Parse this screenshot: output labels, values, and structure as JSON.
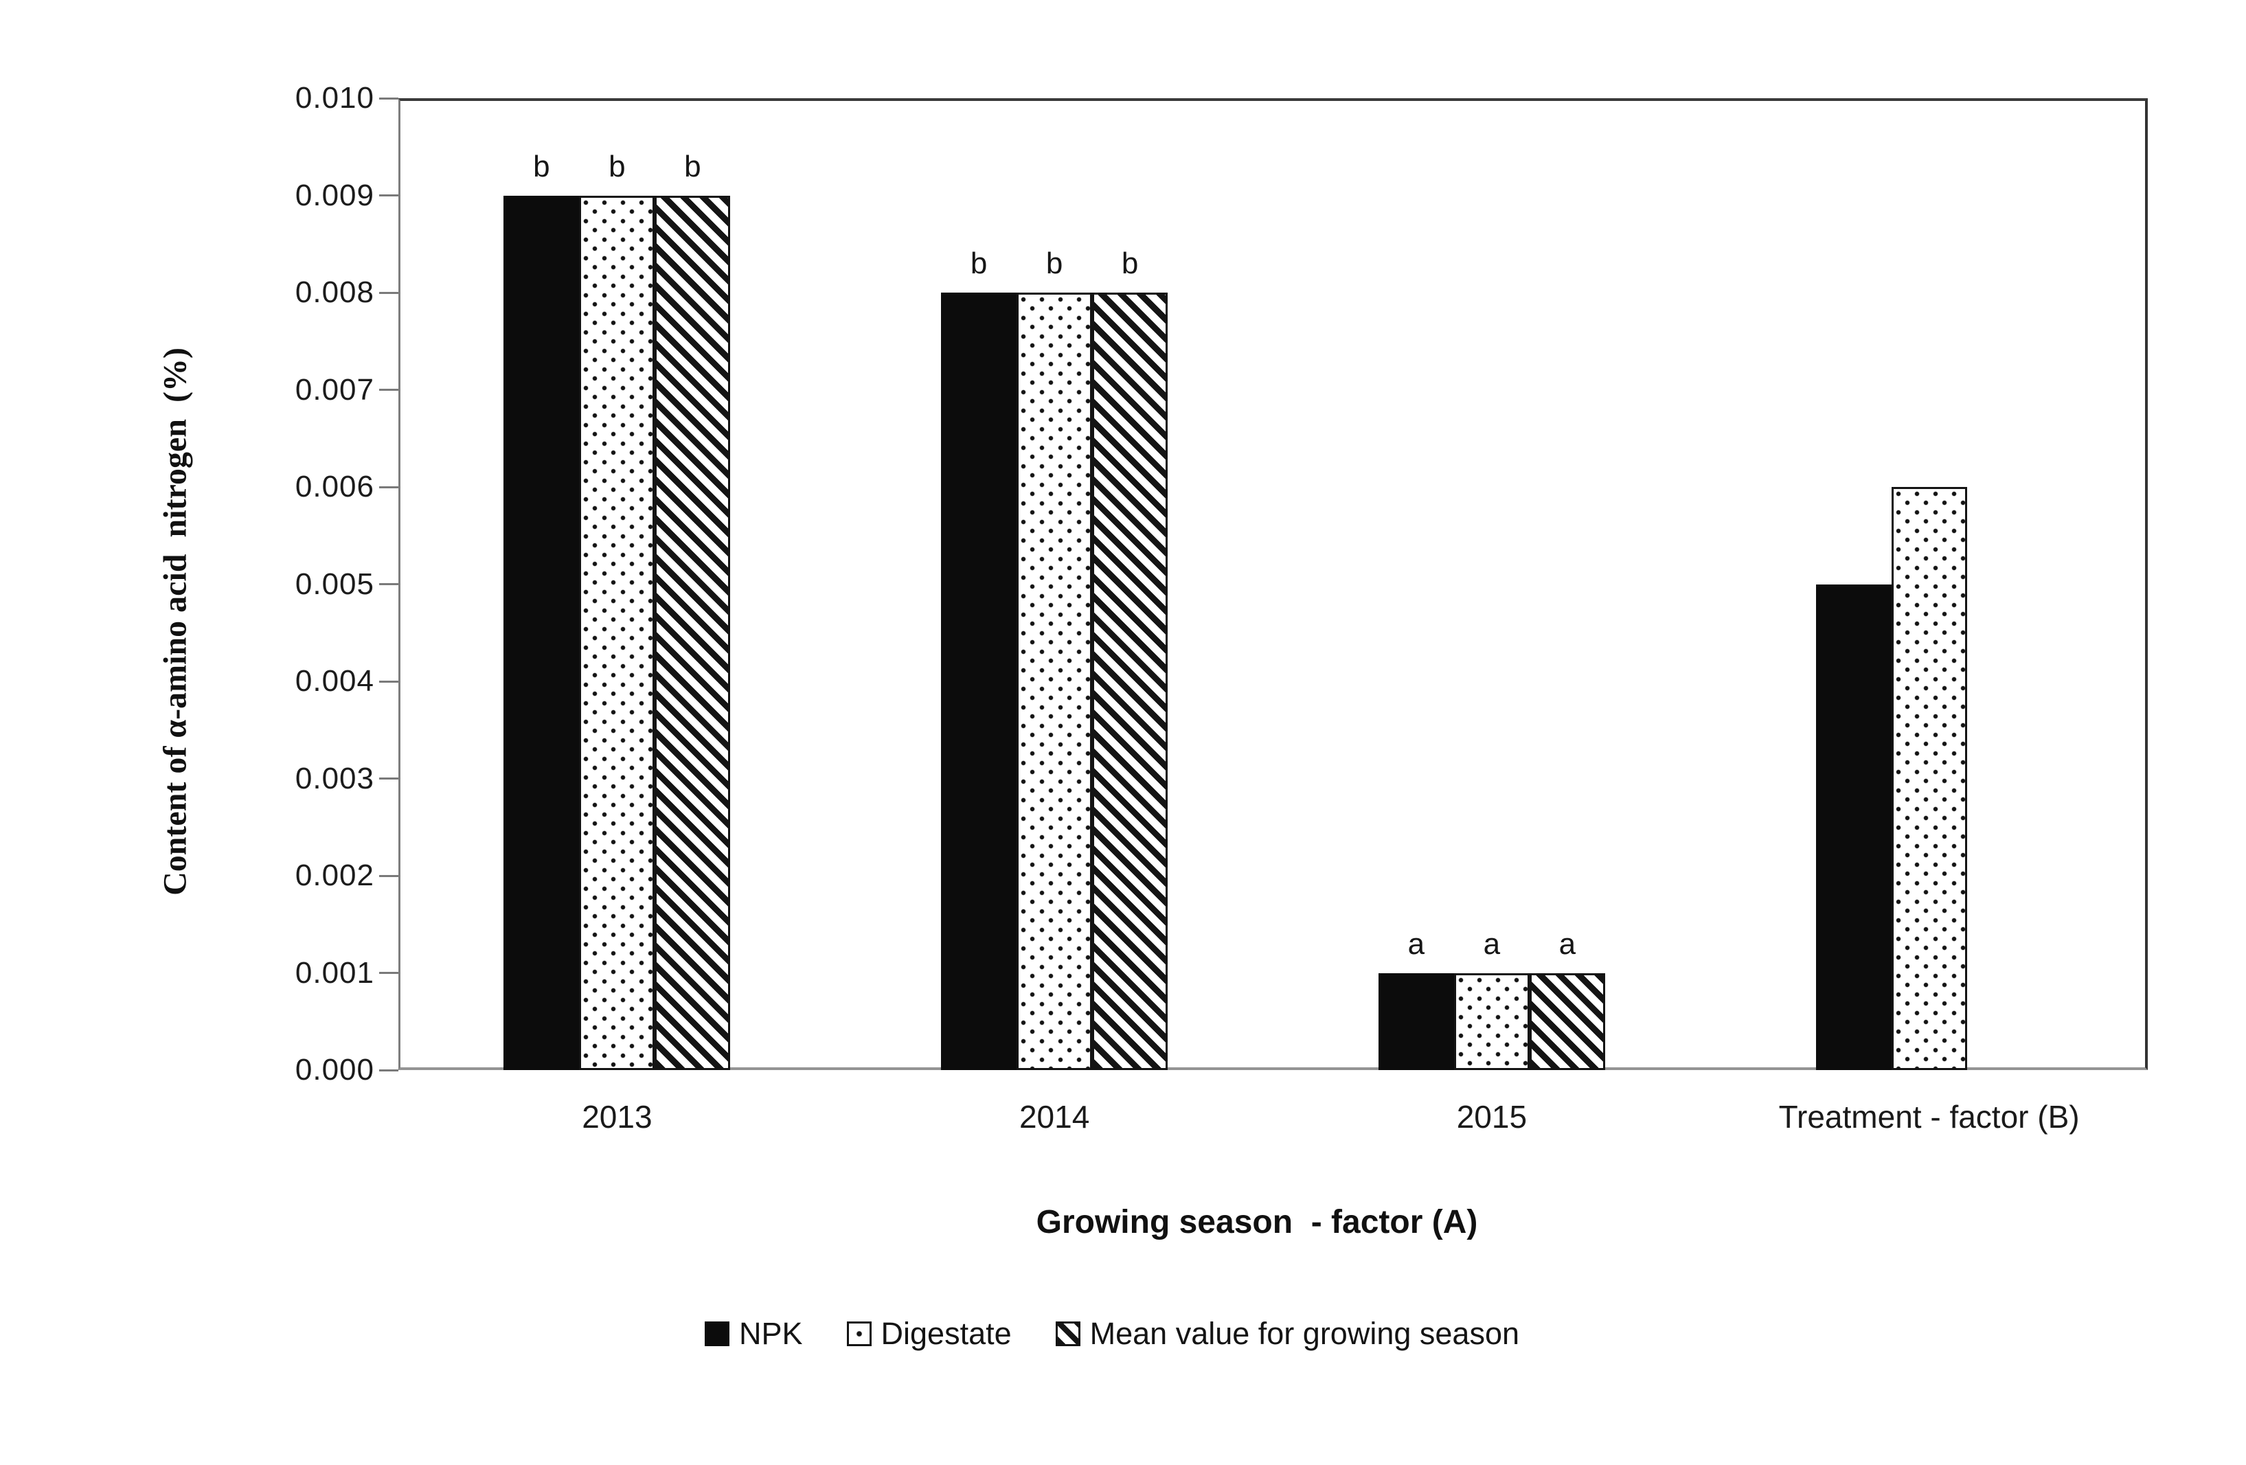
{
  "chart_data": {
    "type": "bar",
    "title": "",
    "ylabel": "Content of α-amino acid  nitrogen  (%)",
    "xlabel": "Growing season  - factor (A)",
    "categories": [
      "2013",
      "2014",
      "2015",
      "Treatment - factor (B)"
    ],
    "series": [
      {
        "name": "NPK",
        "pattern": "solid",
        "values": [
          0.009,
          0.008,
          0.001,
          0.005
        ],
        "letters": [
          "b",
          "b",
          "a",
          null
        ]
      },
      {
        "name": "Digestate",
        "pattern": "dots",
        "values": [
          0.009,
          0.008,
          0.001,
          0.006
        ],
        "letters": [
          "b",
          "b",
          "a",
          null
        ]
      },
      {
        "name": "Mean value for growing season",
        "pattern": "hatch",
        "values": [
          0.009,
          0.008,
          0.001,
          null
        ],
        "letters": [
          "b",
          "b",
          "a",
          null
        ]
      }
    ],
    "y_axis": {
      "min": 0.0,
      "max": 0.01,
      "step": 0.001,
      "tick_decimals": 3
    },
    "grid": false,
    "legend_position": "bottom",
    "colors": {
      "ink": "#141414",
      "axis_dark": "#3a3a3a",
      "axis_light": "#949494",
      "background": "#ffffff"
    }
  }
}
